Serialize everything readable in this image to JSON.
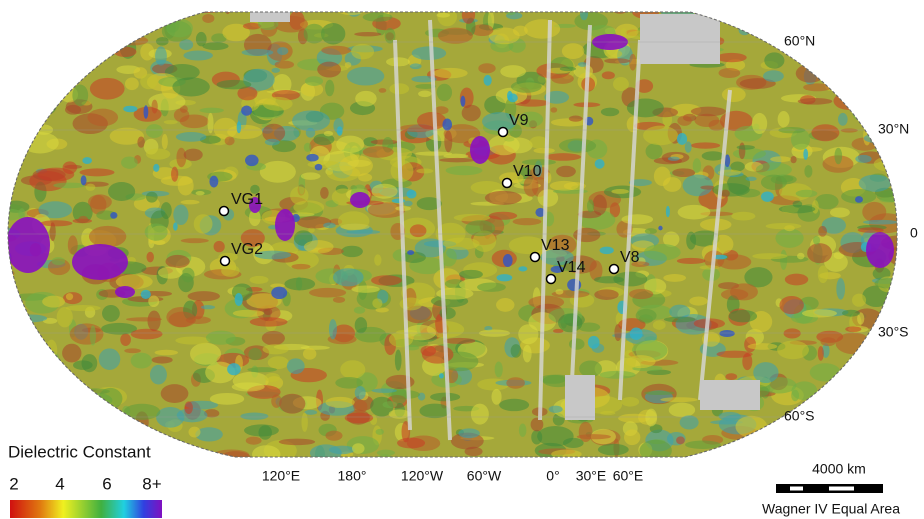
{
  "map": {
    "latitude_labels": [
      "60°N",
      "30°N",
      "0",
      "30°S",
      "60°S"
    ],
    "longitude_labels": [
      "120°E",
      "180°",
      "120°W",
      "60°W",
      "0°",
      "30°E",
      "60°E"
    ],
    "sites": [
      "VG1",
      "VG2",
      "V9",
      "V10",
      "V13",
      "V14",
      "V8"
    ]
  },
  "legend": {
    "title": "Dielectric Constant",
    "ticks": [
      "2",
      "4",
      "6",
      "8+"
    ]
  },
  "scale_bar": {
    "distance": "4000 km",
    "projection": "Wagner IV Equal Area"
  }
}
